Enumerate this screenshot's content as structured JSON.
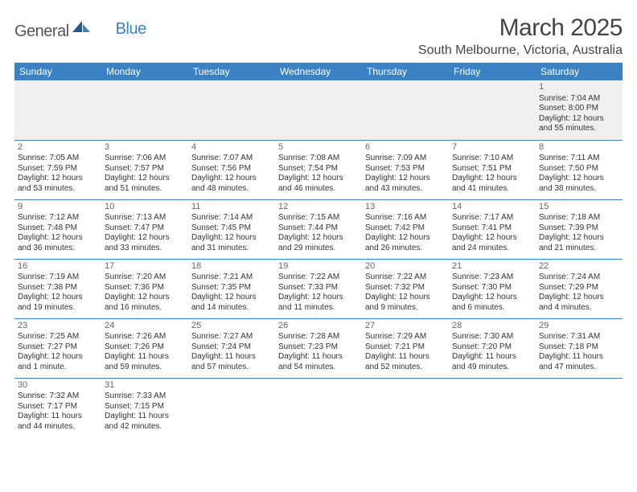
{
  "logo": {
    "general": "General",
    "blue": "Blue"
  },
  "title": "March 2025",
  "location": "South Melbourne, Victoria, Australia",
  "colors": {
    "header_bg": "#3b82c4",
    "header_text": "#ffffff",
    "row_border": "#3b82c4",
    "first_row_bg": "#f0f0f0",
    "page_bg": "#ffffff",
    "title_color": "#444444",
    "cell_text": "#333333",
    "daynum_color": "#666666"
  },
  "typography": {
    "title_fontsize": 30,
    "location_fontsize": 16,
    "th_fontsize": 12,
    "cell_fontsize": 10,
    "daynum_fontsize": 11
  },
  "dayNames": [
    "Sunday",
    "Monday",
    "Tuesday",
    "Wednesday",
    "Thursday",
    "Friday",
    "Saturday"
  ],
  "weeks": [
    [
      null,
      null,
      null,
      null,
      null,
      null,
      {
        "n": "1",
        "sr": "Sunrise: 7:04 AM",
        "ss": "Sunset: 8:00 PM",
        "d1": "Daylight: 12 hours",
        "d2": "and 55 minutes."
      }
    ],
    [
      {
        "n": "2",
        "sr": "Sunrise: 7:05 AM",
        "ss": "Sunset: 7:59 PM",
        "d1": "Daylight: 12 hours",
        "d2": "and 53 minutes."
      },
      {
        "n": "3",
        "sr": "Sunrise: 7:06 AM",
        "ss": "Sunset: 7:57 PM",
        "d1": "Daylight: 12 hours",
        "d2": "and 51 minutes."
      },
      {
        "n": "4",
        "sr": "Sunrise: 7:07 AM",
        "ss": "Sunset: 7:56 PM",
        "d1": "Daylight: 12 hours",
        "d2": "and 48 minutes."
      },
      {
        "n": "5",
        "sr": "Sunrise: 7:08 AM",
        "ss": "Sunset: 7:54 PM",
        "d1": "Daylight: 12 hours",
        "d2": "and 46 minutes."
      },
      {
        "n": "6",
        "sr": "Sunrise: 7:09 AM",
        "ss": "Sunset: 7:53 PM",
        "d1": "Daylight: 12 hours",
        "d2": "and 43 minutes."
      },
      {
        "n": "7",
        "sr": "Sunrise: 7:10 AM",
        "ss": "Sunset: 7:51 PM",
        "d1": "Daylight: 12 hours",
        "d2": "and 41 minutes."
      },
      {
        "n": "8",
        "sr": "Sunrise: 7:11 AM",
        "ss": "Sunset: 7:50 PM",
        "d1": "Daylight: 12 hours",
        "d2": "and 38 minutes."
      }
    ],
    [
      {
        "n": "9",
        "sr": "Sunrise: 7:12 AM",
        "ss": "Sunset: 7:48 PM",
        "d1": "Daylight: 12 hours",
        "d2": "and 36 minutes."
      },
      {
        "n": "10",
        "sr": "Sunrise: 7:13 AM",
        "ss": "Sunset: 7:47 PM",
        "d1": "Daylight: 12 hours",
        "d2": "and 33 minutes."
      },
      {
        "n": "11",
        "sr": "Sunrise: 7:14 AM",
        "ss": "Sunset: 7:45 PM",
        "d1": "Daylight: 12 hours",
        "d2": "and 31 minutes."
      },
      {
        "n": "12",
        "sr": "Sunrise: 7:15 AM",
        "ss": "Sunset: 7:44 PM",
        "d1": "Daylight: 12 hours",
        "d2": "and 29 minutes."
      },
      {
        "n": "13",
        "sr": "Sunrise: 7:16 AM",
        "ss": "Sunset: 7:42 PM",
        "d1": "Daylight: 12 hours",
        "d2": "and 26 minutes."
      },
      {
        "n": "14",
        "sr": "Sunrise: 7:17 AM",
        "ss": "Sunset: 7:41 PM",
        "d1": "Daylight: 12 hours",
        "d2": "and 24 minutes."
      },
      {
        "n": "15",
        "sr": "Sunrise: 7:18 AM",
        "ss": "Sunset: 7:39 PM",
        "d1": "Daylight: 12 hours",
        "d2": "and 21 minutes."
      }
    ],
    [
      {
        "n": "16",
        "sr": "Sunrise: 7:19 AM",
        "ss": "Sunset: 7:38 PM",
        "d1": "Daylight: 12 hours",
        "d2": "and 19 minutes."
      },
      {
        "n": "17",
        "sr": "Sunrise: 7:20 AM",
        "ss": "Sunset: 7:36 PM",
        "d1": "Daylight: 12 hours",
        "d2": "and 16 minutes."
      },
      {
        "n": "18",
        "sr": "Sunrise: 7:21 AM",
        "ss": "Sunset: 7:35 PM",
        "d1": "Daylight: 12 hours",
        "d2": "and 14 minutes."
      },
      {
        "n": "19",
        "sr": "Sunrise: 7:22 AM",
        "ss": "Sunset: 7:33 PM",
        "d1": "Daylight: 12 hours",
        "d2": "and 11 minutes."
      },
      {
        "n": "20",
        "sr": "Sunrise: 7:22 AM",
        "ss": "Sunset: 7:32 PM",
        "d1": "Daylight: 12 hours",
        "d2": "and 9 minutes."
      },
      {
        "n": "21",
        "sr": "Sunrise: 7:23 AM",
        "ss": "Sunset: 7:30 PM",
        "d1": "Daylight: 12 hours",
        "d2": "and 6 minutes."
      },
      {
        "n": "22",
        "sr": "Sunrise: 7:24 AM",
        "ss": "Sunset: 7:29 PM",
        "d1": "Daylight: 12 hours",
        "d2": "and 4 minutes."
      }
    ],
    [
      {
        "n": "23",
        "sr": "Sunrise: 7:25 AM",
        "ss": "Sunset: 7:27 PM",
        "d1": "Daylight: 12 hours",
        "d2": "and 1 minute."
      },
      {
        "n": "24",
        "sr": "Sunrise: 7:26 AM",
        "ss": "Sunset: 7:26 PM",
        "d1": "Daylight: 11 hours",
        "d2": "and 59 minutes."
      },
      {
        "n": "25",
        "sr": "Sunrise: 7:27 AM",
        "ss": "Sunset: 7:24 PM",
        "d1": "Daylight: 11 hours",
        "d2": "and 57 minutes."
      },
      {
        "n": "26",
        "sr": "Sunrise: 7:28 AM",
        "ss": "Sunset: 7:23 PM",
        "d1": "Daylight: 11 hours",
        "d2": "and 54 minutes."
      },
      {
        "n": "27",
        "sr": "Sunrise: 7:29 AM",
        "ss": "Sunset: 7:21 PM",
        "d1": "Daylight: 11 hours",
        "d2": "and 52 minutes."
      },
      {
        "n": "28",
        "sr": "Sunrise: 7:30 AM",
        "ss": "Sunset: 7:20 PM",
        "d1": "Daylight: 11 hours",
        "d2": "and 49 minutes."
      },
      {
        "n": "29",
        "sr": "Sunrise: 7:31 AM",
        "ss": "Sunset: 7:18 PM",
        "d1": "Daylight: 11 hours",
        "d2": "and 47 minutes."
      }
    ],
    [
      {
        "n": "30",
        "sr": "Sunrise: 7:32 AM",
        "ss": "Sunset: 7:17 PM",
        "d1": "Daylight: 11 hours",
        "d2": "and 44 minutes."
      },
      {
        "n": "31",
        "sr": "Sunrise: 7:33 AM",
        "ss": "Sunset: 7:15 PM",
        "d1": "Daylight: 11 hours",
        "d2": "and 42 minutes."
      },
      null,
      null,
      null,
      null,
      null
    ]
  ]
}
